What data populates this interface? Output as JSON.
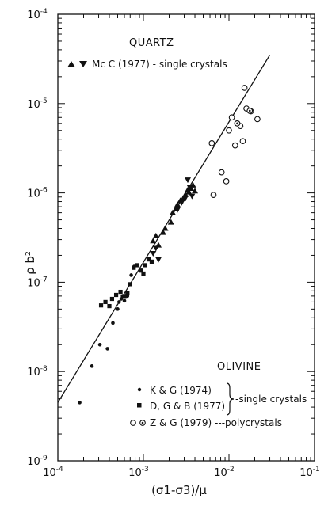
{
  "chart_data": {
    "type": "scatter",
    "title": "",
    "xlabel": "(σ1-σ3)/μ",
    "ylabel": "ρ b²",
    "x_scale": "log",
    "y_scale": "log",
    "xlim": [
      0.0001,
      0.1
    ],
    "ylim": [
      1e-09,
      0.0001
    ],
    "grid": false,
    "x_ticks": [
      {
        "base": "10",
        "exp": "-4",
        "value": 0.0001
      },
      {
        "base": "10",
        "exp": "-3",
        "value": 0.001
      },
      {
        "base": "10",
        "exp": "-2",
        "value": 0.01
      },
      {
        "base": "10",
        "exp": "-1",
        "value": 0.1
      }
    ],
    "y_ticks": [
      {
        "base": "10",
        "exp": "-9",
        "value": 1e-09
      },
      {
        "base": "10",
        "exp": "-8",
        "value": 1e-08
      },
      {
        "base": "10",
        "exp": "-7",
        "value": 1e-07
      },
      {
        "base": "10",
        "exp": "-6",
        "value": 1e-06
      },
      {
        "base": "10",
        "exp": "-5",
        "value": 1e-05
      },
      {
        "base": "10",
        "exp": "-4",
        "value": 0.0001
      }
    ],
    "fit_line": {
      "x": [
        0.0001,
        0.03
      ],
      "y": [
        4.5e-09,
        3.5e-05
      ]
    },
    "annotations": {
      "quartz_heading": "QUARTZ",
      "quartz_label": "Mc C (1977) - single crystals",
      "olivine_heading": "OLIVINE",
      "kg_label": "K & G (1974)",
      "dgb_label": "D, G & B (1977)",
      "zg_label": "Z & G (1979) ---polycrystals",
      "single_crystals_label": "-single crystals"
    },
    "series": [
      {
        "name": "Mc C (1977) - single crystals, up triangles",
        "marker": "triangle-up",
        "x": [
          0.0013,
          0.0014,
          0.0015,
          0.0017,
          0.0018,
          0.0021,
          0.0022,
          0.0024,
          0.0025,
          0.0027,
          0.0029,
          0.0031,
          0.0033,
          0.0034,
          0.0036,
          0.0038,
          0.004
        ],
        "y": [
          2.9e-07,
          3.3e-07,
          2.6e-07,
          3.6e-07,
          4e-07,
          4.7e-07,
          6e-07,
          6.7e-07,
          7.4e-07,
          8.2e-07,
          8.6e-07,
          9.6e-07,
          1.08e-06,
          1.02e-06,
          1.12e-06,
          1.22e-06,
          1.05e-06
        ]
      },
      {
        "name": "Mc C (1977) - single crystals, down triangles",
        "marker": "triangle-down",
        "x": [
          0.0013,
          0.0014,
          0.0015,
          0.0025,
          0.0028,
          0.0031,
          0.0033,
          0.0035,
          0.0037
        ],
        "y": [
          2.1e-07,
          2.4e-07,
          1.8e-07,
          6.5e-07,
          7.8e-07,
          8.8e-07,
          1.4e-06,
          1.15e-06,
          9.2e-07
        ]
      },
      {
        "name": "K & G (1974)",
        "marker": "dot",
        "x": [
          0.00018,
          0.00025,
          0.00031,
          0.00038,
          0.00044,
          0.0005,
          0.00052,
          0.00055,
          0.00057,
          0.0006,
          0.00065,
          0.00072,
          0.00078
        ],
        "y": [
          4.5e-09,
          1.15e-08,
          2e-08,
          1.8e-08,
          3.5e-08,
          5e-08,
          6e-08,
          6.5e-08,
          7e-08,
          6.2e-08,
          7e-08,
          1.2e-07,
          1.5e-07
        ]
      },
      {
        "name": "D, G & B (1977)",
        "marker": "square",
        "x": [
          0.00032,
          0.00036,
          0.0004,
          0.00043,
          0.00048,
          0.00054,
          0.0006,
          0.00065,
          0.0007,
          0.00077,
          0.00085,
          0.00093,
          0.001,
          0.00105,
          0.00115,
          0.00125
        ],
        "y": [
          5.5e-08,
          6e-08,
          5.4e-08,
          6.5e-08,
          7.2e-08,
          7.8e-08,
          7e-08,
          7.5e-08,
          9.5e-08,
          1.45e-07,
          1.55e-07,
          1.35e-07,
          1.25e-07,
          1.55e-07,
          1.8e-07,
          1.7e-07
        ]
      },
      {
        "name": "Z & G (1979) ---polycrystals, open circles",
        "marker": "open-circle",
        "x": [
          0.0063,
          0.0066,
          0.0082,
          0.0093,
          0.01,
          0.0108,
          0.0118,
          0.0125,
          0.0136,
          0.0145,
          0.0152,
          0.016,
          0.018,
          0.0215
        ],
        "y": [
          3.6e-06,
          9.5e-07,
          1.7e-06,
          1.35e-06,
          5e-06,
          7e-06,
          3.4e-06,
          6e-06,
          5.6e-06,
          3.8e-06,
          1.5e-05,
          8.8e-06,
          8.2e-06,
          6.7e-06
        ]
      },
      {
        "name": "Z & G (1979) ---polycrystals, dotted circles",
        "marker": "dot-circle",
        "x": [
          0.0125,
          0.0175
        ],
        "y": [
          6e-06,
          8.3e-06
        ]
      }
    ]
  }
}
